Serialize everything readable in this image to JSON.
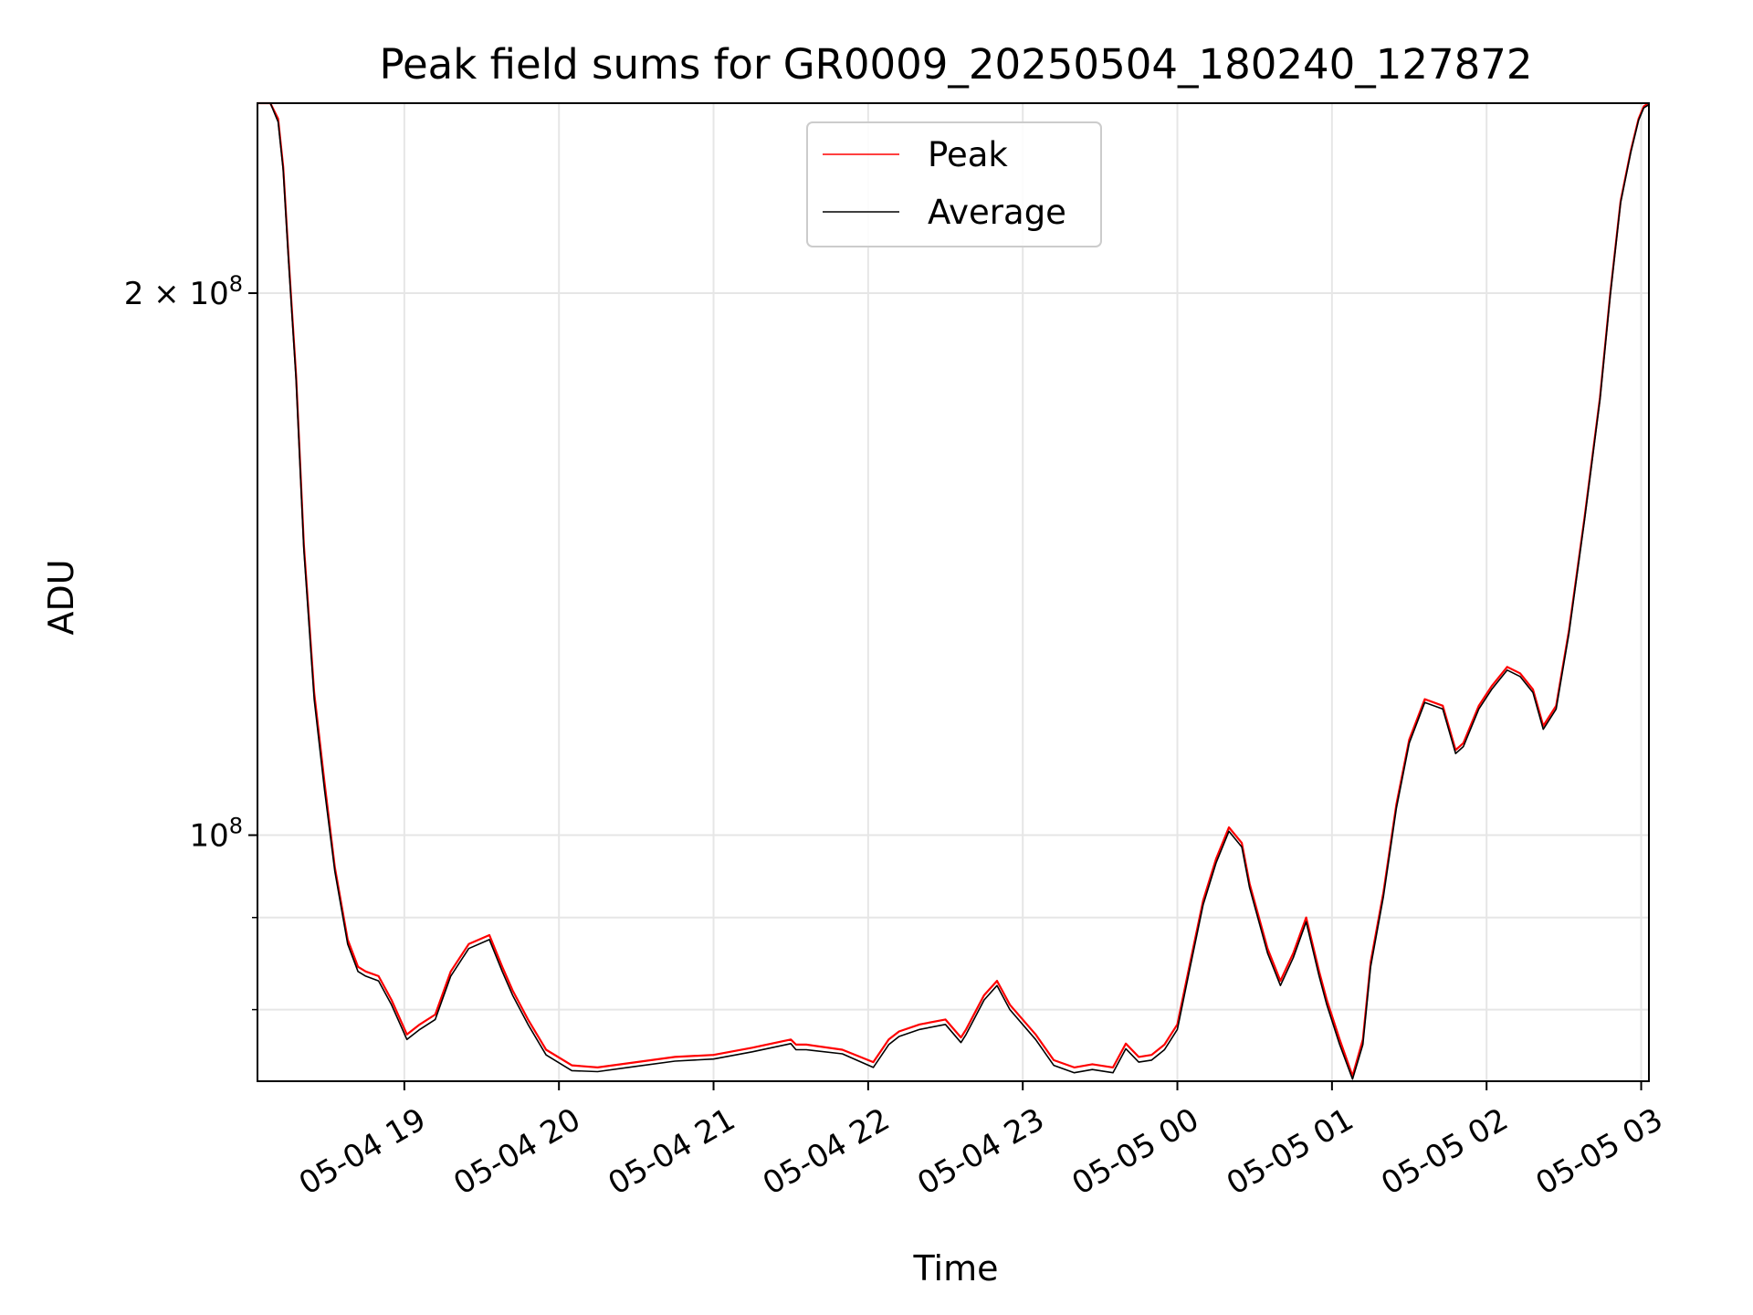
{
  "chart_data": {
    "type": "line",
    "title": "Peak field sums for GR0009_20250504_180240_127872",
    "xlabel": "Time",
    "ylabel": "ADU",
    "yscale": "log",
    "xlim": [
      "2025-05-04 18:03",
      "2025-05-05 03:03"
    ],
    "ylim": [
      73000000,
      255000000
    ],
    "x_ticks": [
      {
        "label": "05-04 19",
        "value": "2025-05-04 19:00"
      },
      {
        "label": "05-04 20",
        "value": "2025-05-04 20:00"
      },
      {
        "label": "05-04 21",
        "value": "2025-05-04 21:00"
      },
      {
        "label": "05-04 22",
        "value": "2025-05-04 22:00"
      },
      {
        "label": "05-04 23",
        "value": "2025-05-04 23:00"
      },
      {
        "label": "05-05 00",
        "value": "2025-05-05 00:00"
      },
      {
        "label": "05-05 01",
        "value": "2025-05-05 01:00"
      },
      {
        "label": "05-05 02",
        "value": "2025-05-05 02:00"
      },
      {
        "label": "05-05 03",
        "value": "2025-05-05 03:00"
      }
    ],
    "y_major_ticks": [
      {
        "mantissa": "2 × 10",
        "exp": "8",
        "value": 200000000
      },
      {
        "mantissa": "10",
        "exp": "8",
        "value": 100000000
      }
    ],
    "y_minor_gridlines": [
      80000000,
      90000000
    ],
    "grid": true,
    "legend_position": "top-center",
    "series": [
      {
        "name": "Peak",
        "color": "#ff0000",
        "x": [
          "2025-05-04 18:03",
          "2025-05-04 18:08",
          "2025-05-04 18:11",
          "2025-05-04 18:13",
          "2025-05-04 18:15",
          "2025-05-04 18:18",
          "2025-05-04 18:21",
          "2025-05-04 18:25",
          "2025-05-04 18:29",
          "2025-05-04 18:33",
          "2025-05-04 18:38",
          "2025-05-04 18:42",
          "2025-05-04 18:45",
          "2025-05-04 18:50",
          "2025-05-04 18:55",
          "2025-05-04 19:01",
          "2025-05-04 19:06",
          "2025-05-04 19:12",
          "2025-05-04 19:18",
          "2025-05-04 19:25",
          "2025-05-04 19:33",
          "2025-05-04 19:38",
          "2025-05-04 19:42",
          "2025-05-04 19:48",
          "2025-05-04 19:55",
          "2025-05-04 20:05",
          "2025-05-04 20:15",
          "2025-05-04 20:30",
          "2025-05-04 20:45",
          "2025-05-04 21:00",
          "2025-05-04 21:15",
          "2025-05-04 21:30",
          "2025-05-04 21:32",
          "2025-05-04 21:36",
          "2025-05-04 21:50",
          "2025-05-04 22:02",
          "2025-05-04 22:08",
          "2025-05-04 22:12",
          "2025-05-04 22:20",
          "2025-05-04 22:30",
          "2025-05-04 22:36",
          "2025-05-04 22:38",
          "2025-05-04 22:45",
          "2025-05-04 22:50",
          "2025-05-04 22:55",
          "2025-05-04 23:05",
          "2025-05-04 23:12",
          "2025-05-04 23:20",
          "2025-05-04 23:27",
          "2025-05-04 23:35",
          "2025-05-04 23:40",
          "2025-05-04 23:45",
          "2025-05-04 23:50",
          "2025-05-04 23:55",
          "2025-05-05 00:00",
          "2025-05-05 00:05",
          "2025-05-05 00:10",
          "2025-05-05 00:15",
          "2025-05-05 00:20",
          "2025-05-05 00:25",
          "2025-05-05 00:28",
          "2025-05-05 00:35",
          "2025-05-05 00:40",
          "2025-05-05 00:45",
          "2025-05-05 00:50",
          "2025-05-05 00:55",
          "2025-05-05 00:58",
          "2025-05-05 01:03",
          "2025-05-05 01:08",
          "2025-05-05 01:12",
          "2025-05-05 01:15",
          "2025-05-05 01:20",
          "2025-05-05 01:25",
          "2025-05-05 01:30",
          "2025-05-05 01:36",
          "2025-05-05 01:43",
          "2025-05-05 01:48",
          "2025-05-05 01:51",
          "2025-05-05 01:57",
          "2025-05-05 02:02",
          "2025-05-05 02:08",
          "2025-05-05 02:13",
          "2025-05-05 02:18",
          "2025-05-05 02:22",
          "2025-05-05 02:27",
          "2025-05-05 02:32",
          "2025-05-05 02:38",
          "2025-05-05 02:44",
          "2025-05-05 02:48",
          "2025-05-05 02:52",
          "2025-05-05 02:56",
          "2025-05-05 02:59",
          "2025-05-05 03:01",
          "2025-05-05 03:03"
        ],
        "y": [
          255000000,
          255000000,
          250000000,
          235000000,
          210000000,
          180000000,
          145000000,
          120000000,
          107000000,
          96000000,
          87500000,
          84500000,
          84000000,
          83500000,
          81000000,
          77500000,
          78500000,
          79500000,
          84000000,
          87000000,
          88000000,
          84500000,
          82000000,
          79000000,
          76000000,
          74500000,
          74300000,
          74800000,
          75300000,
          75500000,
          76200000,
          77000000,
          76500000,
          76500000,
          76000000,
          74800000,
          77000000,
          77800000,
          78500000,
          79000000,
          77200000,
          78000000,
          81500000,
          83000000,
          80500000,
          77500000,
          75000000,
          74300000,
          74600000,
          74300000,
          76600000,
          75300000,
          75500000,
          76500000,
          78500000,
          85000000,
          92000000,
          97000000,
          101000000,
          99000000,
          94000000,
          86500000,
          83000000,
          86000000,
          90000000,
          84000000,
          81000000,
          77000000,
          73500000,
          77000000,
          85000000,
          93000000,
          104000000,
          113000000,
          119000000,
          118000000,
          111500000,
          112500000,
          118000000,
          121000000,
          124000000,
          123000000,
          120500000,
          115000000,
          118000000,
          130000000,
          150000000,
          175000000,
          200000000,
          225000000,
          240000000,
          250000000,
          254000000,
          255000000
        ]
      },
      {
        "name": "Average",
        "color": "#000000",
        "x": [
          "2025-05-04 18:03",
          "2025-05-04 18:08",
          "2025-05-04 18:11",
          "2025-05-04 18:13",
          "2025-05-04 18:15",
          "2025-05-04 18:18",
          "2025-05-04 18:21",
          "2025-05-04 18:25",
          "2025-05-04 18:29",
          "2025-05-04 18:33",
          "2025-05-04 18:38",
          "2025-05-04 18:42",
          "2025-05-04 18:45",
          "2025-05-04 18:50",
          "2025-05-04 18:55",
          "2025-05-04 19:01",
          "2025-05-04 19:06",
          "2025-05-04 19:12",
          "2025-05-04 19:18",
          "2025-05-04 19:25",
          "2025-05-04 19:33",
          "2025-05-04 19:38",
          "2025-05-04 19:42",
          "2025-05-04 19:48",
          "2025-05-04 19:55",
          "2025-05-04 20:05",
          "2025-05-04 20:15",
          "2025-05-04 20:30",
          "2025-05-04 20:45",
          "2025-05-04 21:00",
          "2025-05-04 21:15",
          "2025-05-04 21:30",
          "2025-05-04 21:32",
          "2025-05-04 21:36",
          "2025-05-04 21:50",
          "2025-05-04 22:02",
          "2025-05-04 22:08",
          "2025-05-04 22:12",
          "2025-05-04 22:20",
          "2025-05-04 22:30",
          "2025-05-04 22:36",
          "2025-05-04 22:38",
          "2025-05-04 22:45",
          "2025-05-04 22:50",
          "2025-05-04 22:55",
          "2025-05-04 23:05",
          "2025-05-04 23:12",
          "2025-05-04 23:20",
          "2025-05-04 23:27",
          "2025-05-04 23:35",
          "2025-05-04 23:40",
          "2025-05-04 23:45",
          "2025-05-04 23:50",
          "2025-05-04 23:55",
          "2025-05-05 00:00",
          "2025-05-05 00:05",
          "2025-05-05 00:10",
          "2025-05-05 00:15",
          "2025-05-05 00:20",
          "2025-05-05 00:25",
          "2025-05-05 00:28",
          "2025-05-05 00:35",
          "2025-05-05 00:40",
          "2025-05-05 00:45",
          "2025-05-05 00:50",
          "2025-05-05 00:55",
          "2025-05-05 00:58",
          "2025-05-05 01:03",
          "2025-05-05 01:08",
          "2025-05-05 01:12",
          "2025-05-05 01:15",
          "2025-05-05 01:20",
          "2025-05-05 01:25",
          "2025-05-05 01:30",
          "2025-05-05 01:36",
          "2025-05-05 01:43",
          "2025-05-05 01:48",
          "2025-05-05 01:51",
          "2025-05-05 01:57",
          "2025-05-05 02:02",
          "2025-05-05 02:08",
          "2025-05-05 02:13",
          "2025-05-05 02:18",
          "2025-05-05 02:22",
          "2025-05-05 02:27",
          "2025-05-05 02:32",
          "2025-05-05 02:38",
          "2025-05-05 02:44",
          "2025-05-05 02:48",
          "2025-05-05 02:52",
          "2025-05-05 02:56",
          "2025-05-05 02:59",
          "2025-05-05 03:01",
          "2025-05-05 03:03"
        ],
        "y": [
          255000000,
          255000000,
          249000000,
          234000000,
          209000000,
          179000000,
          144000000,
          119000000,
          106000000,
          95500000,
          87000000,
          84000000,
          83500000,
          83000000,
          80500000,
          77000000,
          78000000,
          79000000,
          83500000,
          86500000,
          87500000,
          84000000,
          81500000,
          78500000,
          75500000,
          74000000,
          73900000,
          74400000,
          74900000,
          75100000,
          75800000,
          76600000,
          76000000,
          76000000,
          75600000,
          74300000,
          76500000,
          77300000,
          78000000,
          78500000,
          76700000,
          77500000,
          81000000,
          82500000,
          80000000,
          77000000,
          74500000,
          73800000,
          74100000,
          73800000,
          76100000,
          74800000,
          75000000,
          76000000,
          78000000,
          84500000,
          91500000,
          96500000,
          100500000,
          98500000,
          93500000,
          86000000,
          82500000,
          85500000,
          89500000,
          83500000,
          80500000,
          76500000,
          73200000,
          76500000,
          84500000,
          92500000,
          103500000,
          112500000,
          118500000,
          117500000,
          111000000,
          112000000,
          117500000,
          120500000,
          123500000,
          122500000,
          120000000,
          114500000,
          117500000,
          129500000,
          149500000,
          174500000,
          199500000,
          224500000,
          239500000,
          249500000,
          253500000,
          254500000
        ]
      }
    ]
  }
}
